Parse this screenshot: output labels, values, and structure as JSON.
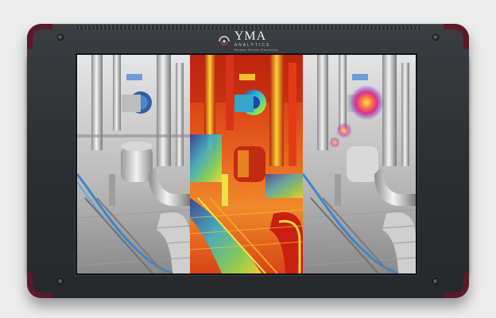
{
  "brand": {
    "name": "YMA",
    "subtitle": "ANALYTICS",
    "tagline": "Sensor Driven Decisions",
    "accent_color": "#5a1a2a"
  },
  "screen": {
    "panels": [
      {
        "mode": "visible"
      },
      {
        "mode": "thermal"
      },
      {
        "mode": "visible-with-hotspot"
      }
    ]
  },
  "colors": {
    "body": "#2b2e31",
    "bumper": "#5a1a2a",
    "background": "#ececec",
    "hotspot": "#d9348f",
    "pipe_blue": "#3d86c6"
  }
}
